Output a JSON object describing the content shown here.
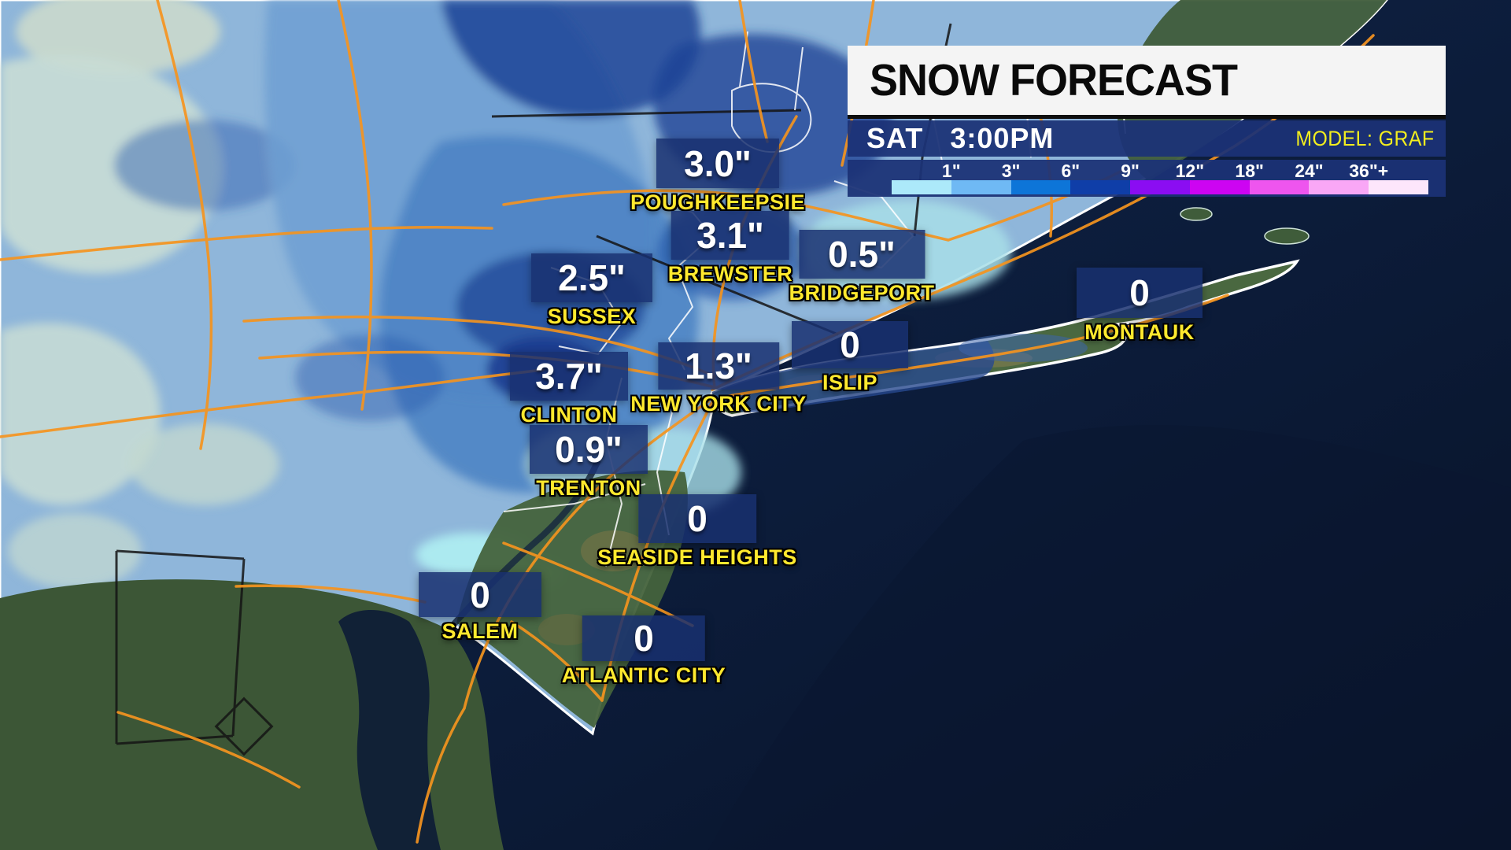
{
  "header": {
    "title": "SNOW FORECAST",
    "day": "SAT",
    "time": "3:00PM",
    "model": "MODEL: GRAF"
  },
  "legend": {
    "ticks": [
      "1\"",
      "3\"",
      "6\"",
      "9\"",
      "12\"",
      "18\"",
      "24\"",
      "36\"+"
    ],
    "segment_colors": [
      "#ace9fa",
      "#6fb9f4",
      "#0d75d8",
      "#0f3ea8",
      "#8b0df2",
      "#cd04f2",
      "#ee55ee",
      "#f9a7f6",
      "#fde6fb"
    ]
  },
  "stations": [
    {
      "id": "poughkeepsie",
      "name": "POUGHKEEPSIE",
      "value": "3.0\""
    },
    {
      "id": "brewster",
      "name": "BREWSTER",
      "value": "3.1\""
    },
    {
      "id": "bridgeport",
      "name": "BRIDGEPORT",
      "value": "0.5\""
    },
    {
      "id": "sussex",
      "name": "SUSSEX",
      "value": "2.5\""
    },
    {
      "id": "montauk",
      "name": "MONTAUK",
      "value": "0"
    },
    {
      "id": "islip",
      "name": "ISLIP",
      "value": "0"
    },
    {
      "id": "new-york-city",
      "name": "NEW YORK CITY",
      "value": "1.3\""
    },
    {
      "id": "clinton",
      "name": "CLINTON",
      "value": "3.7\""
    },
    {
      "id": "trenton",
      "name": "TRENTON",
      "value": "0.9\""
    },
    {
      "id": "seaside-heights",
      "name": "SEASIDE HEIGHTS",
      "value": "0"
    },
    {
      "id": "salem",
      "name": "SALEM",
      "value": "0"
    },
    {
      "id": "atlantic-city",
      "name": "ATLANTIC CITY",
      "value": "0"
    }
  ],
  "colors": {
    "accent_yellow": "#ffe92e",
    "panel_navy": "#1c3276",
    "value_box_navy": "#193070",
    "title_bg": "#f4f4f4",
    "title_text": "#0a0a0a",
    "road_orange": "#f5941f",
    "ocean": "#0c1b38"
  }
}
